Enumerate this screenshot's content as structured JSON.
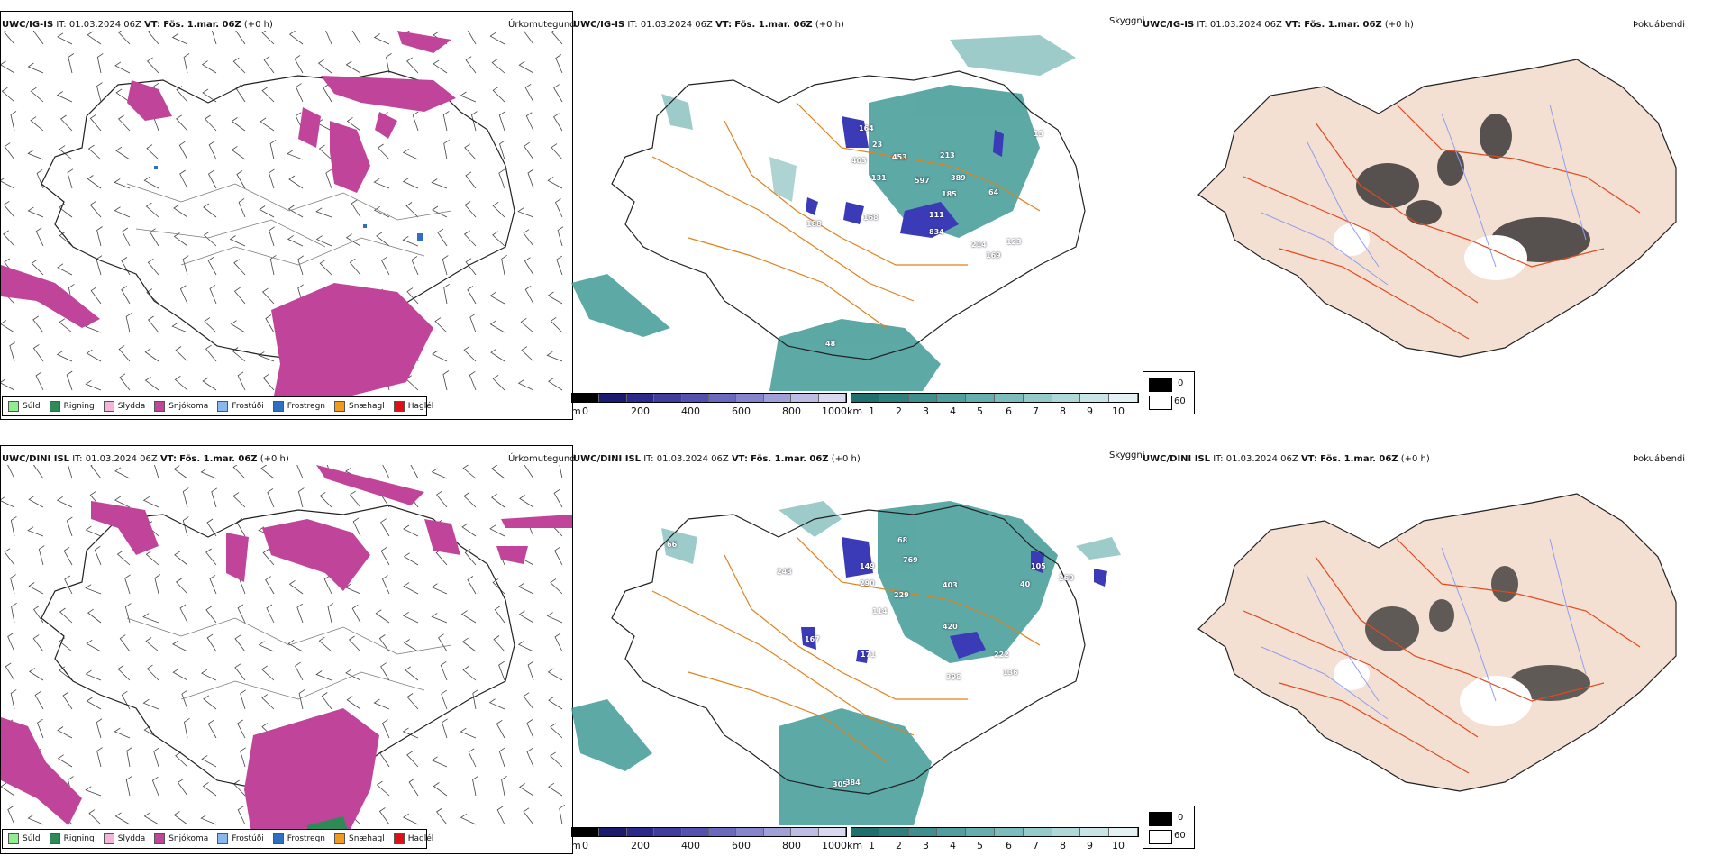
{
  "panels": {
    "p1": {
      "model": "UWC/IG-IS",
      "it": "IT: 01.03.2024 06Z",
      "vt_label": "VT:",
      "vt": "Fös. 1.mar. 06Z",
      "lead": "(+0 h)",
      "right_title": "Úrkomutegund"
    },
    "p2": {
      "model": "UWC/IG-IS",
      "it": "IT: 01.03.2024 06Z",
      "vt_label": "VT:",
      "vt": "Fös. 1.mar. 06Z",
      "lead": "(+0 h)",
      "right_title": "Skyggni"
    },
    "p3": {
      "model": "UWC/IG-IS",
      "it": "IT: 01.03.2024 06Z",
      "vt_label": "VT:",
      "vt": "Fös. 1.mar. 06Z",
      "lead": "(+0 h)",
      "right_title": "Þokuábendi"
    },
    "p4": {
      "model": "UWC/DINI ISL",
      "it": "IT: 01.03.2024 06Z",
      "vt_label": "VT:",
      "vt": "Fös. 1.mar. 06Z",
      "lead": "(+0 h)",
      "right_title": "Úrkomutegund"
    },
    "p5": {
      "model": "UWC/DINI ISL",
      "it": "IT: 01.03.2024 06Z",
      "vt_label": "VT:",
      "vt": "Fös. 1.mar. 06Z",
      "lead": "(+0 h)",
      "right_title": "Skyggni"
    },
    "p6": {
      "model": "UWC/DINI ISL",
      "it": "IT: 01.03.2024 06Z",
      "vt_label": "VT:",
      "vt": "Fös. 1.mar. 06Z",
      "lead": "(+0 h)",
      "right_title": "Þokuábendi"
    }
  },
  "precip_legend": [
    {
      "label": "Súld",
      "color": "#90ee90"
    },
    {
      "label": "Rigning",
      "color": "#2e8b57"
    },
    {
      "label": "Slydda",
      "color": "#f4b6d8"
    },
    {
      "label": "Snjókoma",
      "color": "#c0449a"
    },
    {
      "label": "Frostúði",
      "color": "#87b8f0"
    },
    {
      "label": "Frostregn",
      "color": "#2f6fc0"
    },
    {
      "label": "Snæhagl",
      "color": "#f29a1c"
    },
    {
      "label": "Haglél",
      "color": "#e01010"
    }
  ],
  "visibility_colorbars": {
    "height_unit": "m",
    "height_ticks": [
      "0",
      "200",
      "400",
      "600",
      "800",
      "1000"
    ],
    "dist_unit": "km",
    "dist_ticks": [
      "1",
      "2",
      "3",
      "4",
      "5",
      "6",
      "7",
      "8",
      "9",
      "10"
    ],
    "height_colors": [
      "#000000",
      "#1a1a6e",
      "#2a2a8a",
      "#3d3d9c",
      "#5252ae",
      "#6a6abd",
      "#8585cb",
      "#a0a0d8",
      "#bcbce4",
      "#d8d8f0"
    ],
    "dist_colors": [
      "#1f6f6f",
      "#2e8080",
      "#3f8f8f",
      "#519e9e",
      "#66adad",
      "#7dbcbc",
      "#95caca",
      "#aed8d8",
      "#c8e5e5",
      "#e2f2f2"
    ]
  },
  "fog_legend": {
    "labels": [
      "0",
      "60"
    ]
  },
  "visibility_labels_top": [
    "164",
    "23",
    "403",
    "453",
    "131",
    "597",
    "213",
    "389",
    "185",
    "64",
    "13",
    "188",
    "168",
    "111",
    "834",
    "214",
    "169",
    "123",
    "48"
  ],
  "visibility_labels_bottom": [
    "66",
    "248",
    "68",
    "769",
    "149",
    "290",
    "403",
    "229",
    "114",
    "105",
    "40",
    "260",
    "420",
    "167",
    "171",
    "222",
    "136",
    "398",
    "305",
    "384"
  ],
  "colors": {
    "snow": "#c0449a",
    "teal": "#3f9a96",
    "blue": "#3b3bb8",
    "road": "#e0821e",
    "fog_land": "#f3e0d2",
    "fog_road": "#e04a20",
    "river": "#8f9ff0"
  }
}
